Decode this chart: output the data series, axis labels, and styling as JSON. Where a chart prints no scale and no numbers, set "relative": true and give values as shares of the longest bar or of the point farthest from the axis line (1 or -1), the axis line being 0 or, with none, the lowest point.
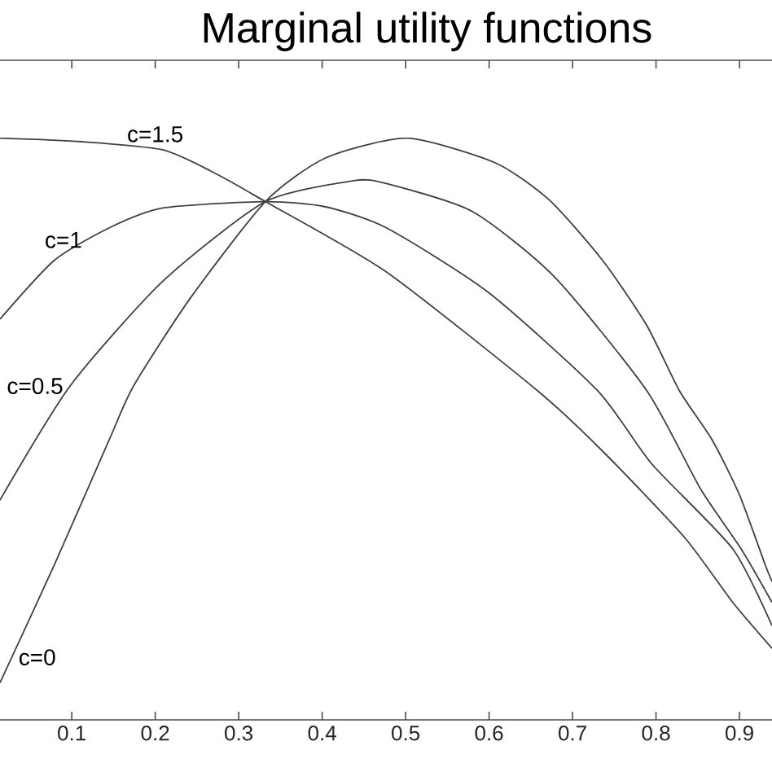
{
  "chart_data": {
    "type": "line",
    "title": "Marginal utility functions",
    "relative": true,
    "xlim": [
      0.014,
      0.939
    ],
    "xticks": [
      0.1,
      0.2,
      0.3,
      0.4,
      0.5,
      0.6,
      0.7,
      0.8,
      0.9
    ],
    "tick_labels": "x",
    "grid": false,
    "marker": "none",
    "line_style": "solid",
    "series": [
      {
        "name": "c=0",
        "color": "#404040",
        "x": [
          0.014,
          0.079,
          0.145,
          0.174,
          0.242,
          0.332,
          0.404,
          0.502,
          0.607,
          0.672,
          0.736,
          0.789,
          0.828,
          0.867,
          0.9,
          0.931,
          0.939
        ],
        "values": [
          0.064,
          0.266,
          0.482,
          0.574,
          0.725,
          0.891,
          0.966,
          1.0,
          0.958,
          0.894,
          0.79,
          0.678,
          0.566,
          0.482,
          0.387,
          0.266,
          0.238
        ]
      },
      {
        "name": "c=0.5",
        "color": "#404040",
        "x": [
          0.014,
          0.098,
          0.209,
          0.332,
          0.438,
          0.477,
          0.58,
          0.678,
          0.789,
          0.853,
          0.902,
          0.939
        ],
        "values": [
          0.378,
          0.574,
          0.754,
          0.891,
          0.927,
          0.922,
          0.874,
          0.762,
          0.566,
          0.398,
          0.294,
          0.202
        ]
      },
      {
        "name": "c=1",
        "color": "#404040",
        "x": [
          0.014,
          0.079,
          0.145,
          0.209,
          0.332,
          0.404,
          0.477,
          0.6,
          0.73,
          0.795,
          0.892,
          0.939
        ],
        "values": [
          0.689,
          0.79,
          0.846,
          0.88,
          0.891,
          0.882,
          0.846,
          0.734,
          0.566,
          0.44,
          0.294,
          0.162
        ]
      },
      {
        "name": "c=1.5",
        "color": "#404040",
        "x": [
          0.014,
          0.112,
          0.209,
          0.274,
          0.332,
          0.477,
          0.658,
          0.736,
          0.834,
          0.892,
          0.939
        ],
        "values": [
          1.0,
          0.994,
          0.98,
          0.938,
          0.891,
          0.77,
          0.566,
          0.462,
          0.314,
          0.202,
          0.123
        ]
      }
    ]
  }
}
